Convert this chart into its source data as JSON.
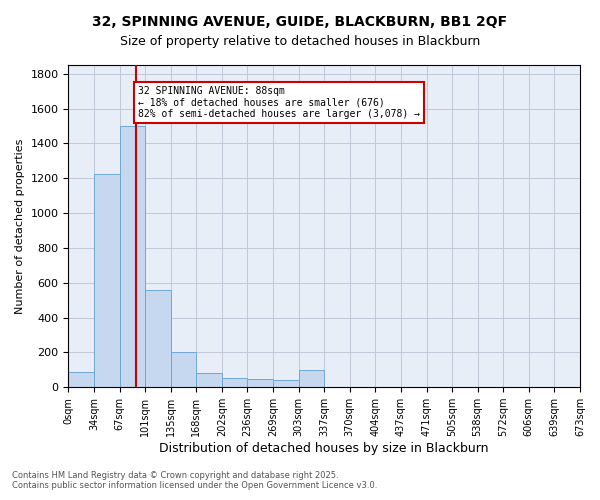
{
  "title_line1": "32, SPINNING AVENUE, GUIDE, BLACKBURN, BB1 2QF",
  "title_line2": "Size of property relative to detached houses in Blackburn",
  "xlabel": "Distribution of detached houses by size in Blackburn",
  "ylabel": "Number of detached properties",
  "annotation_text": "32 SPINNING AVENUE: 88sqm\n← 18% of detached houses are smaller (676)\n82% of semi-detached houses are larger (3,078) →",
  "footer_line1": "Contains HM Land Registry data © Crown copyright and database right 2025.",
  "footer_line2": "Contains public sector information licensed under the Open Government Licence v3.0.",
  "property_size": 88,
  "bar_width": 33.5,
  "bar_left_edges": [
    0,
    33.5,
    67,
    100.5,
    134,
    167.5,
    201,
    234.5,
    268,
    301.5,
    335,
    368.5,
    402,
    435.5,
    469,
    502.5,
    536,
    569.5,
    603,
    636.5
  ],
  "bar_labels": [
    "0sqm",
    "34sqm",
    "67sqm",
    "101sqm",
    "135sqm",
    "168sqm",
    "202sqm",
    "236sqm",
    "269sqm",
    "303sqm",
    "337sqm",
    "370sqm",
    "404sqm",
    "437sqm",
    "471sqm",
    "505sqm",
    "538sqm",
    "572sqm",
    "606sqm",
    "639sqm",
    "673sqm"
  ],
  "bar_heights": [
    90,
    1225,
    1500,
    560,
    205,
    80,
    55,
    45,
    40,
    100,
    0,
    0,
    0,
    0,
    0,
    0,
    0,
    0,
    0,
    0
  ],
  "bar_color": "#c5d8f0",
  "bar_edge_color": "#6fa8d4",
  "vline_x": 88,
  "vline_color": "#cc0000",
  "annotation_box_color": "#cc0000",
  "annotation_bg": "#ffffff",
  "ylim": [
    0,
    1850
  ],
  "yticks": [
    0,
    200,
    400,
    600,
    800,
    1000,
    1200,
    1400,
    1600,
    1800
  ],
  "grid_color": "#c0c8d8",
  "bg_color": "#e8eef8"
}
